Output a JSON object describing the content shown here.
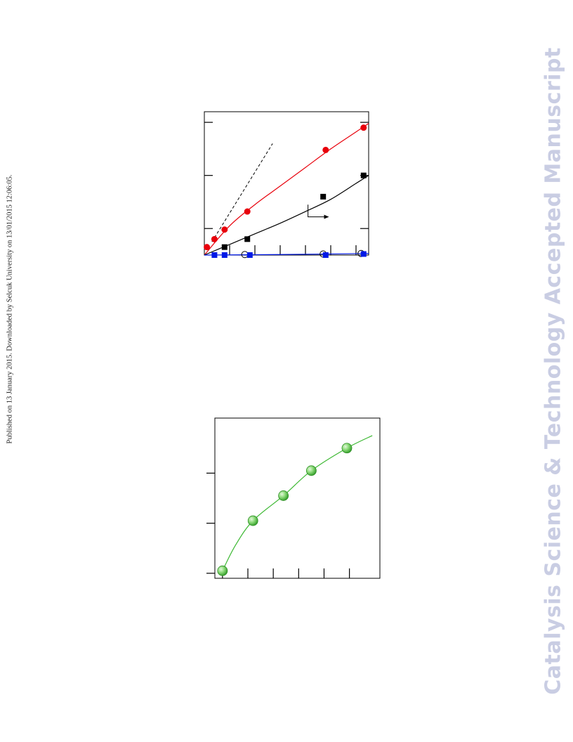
{
  "page": {
    "side_note": "Published on 13 January 2015. Downloaded by Selcuk University on 13/01/2015 12:06:05.",
    "watermark": "Catalysis Science & Technology Accepted Manuscript"
  },
  "colors": {
    "red": "#e8000b",
    "black": "#000000",
    "blue": "#0019e6",
    "green": "#3cb832",
    "watermark": "#c9cde3"
  },
  "chart_data": [
    {
      "type": "scatter",
      "xlim": [
        0,
        6.5
      ],
      "ylim": [
        0,
        2.7
      ],
      "grid": false,
      "series": [
        {
          "marker": "circle-filled",
          "color": "#e8000b",
          "x": [
            0.1,
            0.4,
            0.8,
            1.7,
            4.8,
            6.3
          ],
          "y": [
            0.15,
            0.3,
            0.48,
            0.82,
            1.98,
            2.4
          ]
        },
        {
          "marker": "square-filled",
          "color": "#000000",
          "x": [
            0.8,
            1.7,
            4.7,
            6.3
          ],
          "y": [
            0.15,
            0.3,
            1.1,
            1.5
          ]
        },
        {
          "marker": "circle-open",
          "color": "#000000",
          "x": [
            1.6,
            4.7,
            6.2
          ],
          "y": [
            0.01,
            0.02,
            0.03
          ]
        },
        {
          "marker": "square-filled",
          "color": "#0019e6",
          "x": [
            0.4,
            0.8,
            1.8,
            4.8,
            6.3
          ],
          "y": [
            0.0,
            0.0,
            0.0,
            0.0,
            0.02
          ]
        }
      ],
      "fits": [
        {
          "color": "#e8000b",
          "x": [
            0,
            1,
            2,
            3,
            4,
            5,
            6,
            6.5
          ],
          "y": [
            0.0,
            0.55,
            0.95,
            1.3,
            1.65,
            2.0,
            2.32,
            2.48
          ]
        },
        {
          "color": "#000000",
          "x": [
            0,
            1,
            2,
            3,
            4,
            5,
            6,
            6.5
          ],
          "y": [
            0.0,
            0.2,
            0.4,
            0.6,
            0.82,
            1.05,
            1.35,
            1.5
          ]
        },
        {
          "color": "#0019e6",
          "x": [
            0,
            3,
            6.5
          ],
          "y": [
            0.0,
            0.01,
            0.03
          ]
        }
      ],
      "reference_line": {
        "style": "dashed",
        "x": [
          0.3,
          2.7
        ],
        "y": [
          0.25,
          2.1
        ]
      },
      "annotation": {
        "shape": "arrow",
        "points": [
          [
            4.1,
            0.95
          ],
          [
            4.1,
            0.72
          ],
          [
            4.9,
            0.72
          ]
        ]
      }
    },
    {
      "type": "scatter",
      "xlim": [
        0,
        6.5
      ],
      "ylim": [
        0,
        3.2
      ],
      "grid": false,
      "series": [
        {
          "marker": "sphere",
          "color": "#3cb832",
          "x": [
            0.3,
            1.5,
            2.7,
            3.8,
            5.2
          ],
          "y": [
            0.15,
            1.15,
            1.65,
            2.15,
            2.6
          ]
        }
      ],
      "fits": [
        {
          "color": "#3cb832",
          "x": [
            0.3,
            0.8,
            1.5,
            2.7,
            3.8,
            5.2,
            6.2
          ],
          "y": [
            0.15,
            0.65,
            1.15,
            1.65,
            2.15,
            2.6,
            2.85
          ]
        }
      ]
    }
  ]
}
